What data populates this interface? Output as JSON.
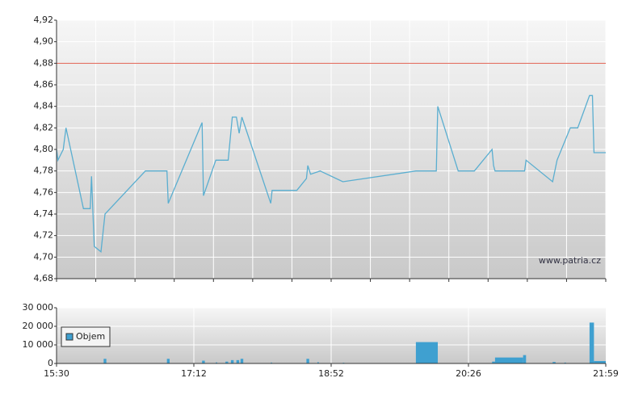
{
  "chart_data": [
    {
      "type": "line",
      "x": [
        "15:30",
        "15:31",
        "15:35",
        "15:37",
        "15:50",
        "15:55",
        "15:56",
        "15:58",
        "16:03",
        "16:06",
        "16:36",
        "16:52",
        "16:53",
        "17:18",
        "17:19",
        "17:28",
        "17:37",
        "17:40",
        "17:43",
        "17:45",
        "17:47",
        "18:08",
        "18:09",
        "18:27",
        "18:34",
        "18:35",
        "18:37",
        "18:44",
        "19:00",
        "19:50",
        "20:04",
        "20:05",
        "20:19",
        "20:30",
        "20:42",
        "20:43",
        "20:44",
        "21:04",
        "21:05",
        "21:23",
        "21:26",
        "21:35",
        "21:40",
        "21:48",
        "21:50",
        "21:51",
        "21:59"
      ],
      "values": [
        4.8,
        4.79,
        4.8,
        4.82,
        4.745,
        4.745,
        4.775,
        4.71,
        4.705,
        4.74,
        4.78,
        4.78,
        4.75,
        4.825,
        4.757,
        4.79,
        4.79,
        4.83,
        4.83,
        4.815,
        4.83,
        4.75,
        4.762,
        4.762,
        4.773,
        4.785,
        4.777,
        4.78,
        4.77,
        4.78,
        4.78,
        4.84,
        4.78,
        4.78,
        4.8,
        4.785,
        4.78,
        4.78,
        4.79,
        4.77,
        4.79,
        4.82,
        4.82,
        4.85,
        4.85,
        4.797,
        4.797
      ],
      "color": "#5aaed0",
      "xlim": [
        "15:30",
        "21:59"
      ],
      "xticks": [
        "15:30",
        "17:12",
        "18:52",
        "20:26",
        "21:59"
      ],
      "ylim": [
        4.68,
        4.92
      ],
      "yticks": [
        {
          "value": 4.68,
          "label": "4,68"
        },
        {
          "value": 4.7,
          "label": "4,70"
        },
        {
          "value": 4.72,
          "label": "4,72"
        },
        {
          "value": 4.74,
          "label": "4,74"
        },
        {
          "value": 4.76,
          "label": "4,76"
        },
        {
          "value": 4.78,
          "label": "4,78"
        },
        {
          "value": 4.8,
          "label": "4,80"
        },
        {
          "value": 4.82,
          "label": "4,82"
        },
        {
          "value": 4.84,
          "label": "4,84"
        },
        {
          "value": 4.86,
          "label": "4,86"
        },
        {
          "value": 4.88,
          "label": "4,88"
        },
        {
          "value": 4.9,
          "label": "4,90"
        },
        {
          "value": 4.92,
          "label": "4,92"
        }
      ],
      "ref_line": 4.88,
      "ref_color": "#e06050",
      "watermark": "www.patria.cz",
      "grid": true
    },
    {
      "type": "bar",
      "x": [
        "16:05",
        "16:52",
        "17:18",
        "17:28",
        "17:35",
        "17:39",
        "17:43",
        "17:46",
        "18:08",
        "18:34",
        "18:42",
        "19:00",
        "19:50",
        "20:42",
        "20:44",
        "21:03",
        "21:23",
        "21:31",
        "21:48",
        "21:51"
      ],
      "x_end": [
        "16:07",
        "16:54",
        "17:20",
        "17:29",
        "17:37",
        "17:41",
        "17:45",
        "17:48",
        "18:09",
        "18:36",
        "18:43",
        "19:01",
        "20:05",
        "20:44",
        "21:03",
        "21:05",
        "21:25",
        "21:32",
        "21:51",
        "21:59"
      ],
      "series": [
        {
          "name": "Objem",
          "color": "#3fa0d0",
          "values": [
            2500,
            2500,
            1500,
            600,
            1000,
            1800,
            1800,
            2500,
            500,
            2500,
            700,
            400,
            11500,
            1000,
            3200,
            4500,
            800,
            500,
            22000,
            1300
          ]
        }
      ],
      "xlim": [
        "15:30",
        "21:59"
      ],
      "xticks": [
        "15:30",
        "17:12",
        "18:52",
        "20:26",
        "21:59"
      ],
      "ylim": [
        0,
        30000
      ],
      "yticks": [
        0,
        {
          "value": 10000,
          "label": "10 000"
        },
        {
          "value": 20000,
          "label": "20 000"
        },
        {
          "value": 30000,
          "label": "30 000"
        }
      ],
      "legend": "top-left",
      "grid": true
    }
  ]
}
